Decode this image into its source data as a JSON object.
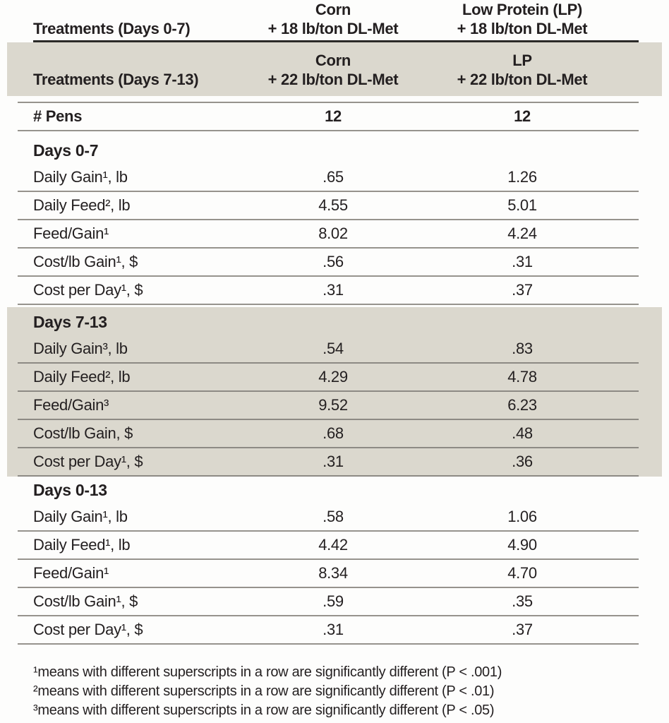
{
  "table": {
    "header_row1": {
      "label": "Treatments (Days 0-7)",
      "col1_line1": "Corn",
      "col1_line2": "+ 18 lb/ton DL-Met",
      "col2_line1": "Low Protein (LP)",
      "col2_line2": "+ 18 lb/ton DL-Met"
    },
    "header_row2": {
      "label": "Treatments (Days 7-13)",
      "col1_line1": "Corn",
      "col1_line2": "+ 22 lb/ton DL-Met",
      "col2_line1": "LP",
      "col2_line2": "+ 22 lb/ton DL-Met"
    },
    "pens_row": {
      "label": "# Pens",
      "col1": "12",
      "col2": "12"
    },
    "sections": [
      {
        "title": "Days 0-7",
        "rows": [
          {
            "label": "Daily Gain¹, lb",
            "col1": ".65",
            "col2": "1.26"
          },
          {
            "label": "Daily Feed², lb",
            "col1": "4.55",
            "col2": "5.01"
          },
          {
            "label": "Feed/Gain¹",
            "col1": "8.02",
            "col2": "4.24"
          },
          {
            "label": "Cost/lb Gain¹, $",
            "col1": ".56",
            "col2": ".31"
          },
          {
            "label": "Cost per Day¹, $",
            "col1": ".31",
            "col2": ".37"
          }
        ]
      },
      {
        "title": "Days 7-13",
        "rows": [
          {
            "label": "Daily Gain³, lb",
            "col1": ".54",
            "col2": ".83"
          },
          {
            "label": "Daily Feed², lb",
            "col1": "4.29",
            "col2": "4.78"
          },
          {
            "label": "Feed/Gain³",
            "col1": "9.52",
            "col2": "6.23"
          },
          {
            "label": "Cost/lb Gain, $",
            "col1": ".68",
            "col2": ".48"
          },
          {
            "label": "Cost per Day¹, $",
            "col1": ".31",
            "col2": ".36"
          }
        ]
      },
      {
        "title": "Days 0-13",
        "rows": [
          {
            "label": "Daily Gain¹, lb",
            "col1": ".58",
            "col2": "1.06"
          },
          {
            "label": "Daily Feed¹, lb",
            "col1": "4.42",
            "col2": "4.90"
          },
          {
            "label": "Feed/Gain¹",
            "col1": "8.34",
            "col2": "4.70"
          },
          {
            "label": "Cost/lb Gain¹, $",
            "col1": ".59",
            "col2": ".35"
          },
          {
            "label": "Cost per Day¹, $",
            "col1": ".31",
            "col2": ".37"
          }
        ]
      }
    ],
    "footnotes": [
      "¹means with different superscripts in a row are significantly different (P < .001)",
      "²means with different superscripts in a row are significantly different (P < .01)",
      "³means with different superscripts in a row are significantly different (P < .05)"
    ]
  },
  "colors": {
    "shade_background": "#dbd8ce",
    "rule_dark": "#2b2a28",
    "rule_gray": "#96938d",
    "text": "#231f20"
  }
}
